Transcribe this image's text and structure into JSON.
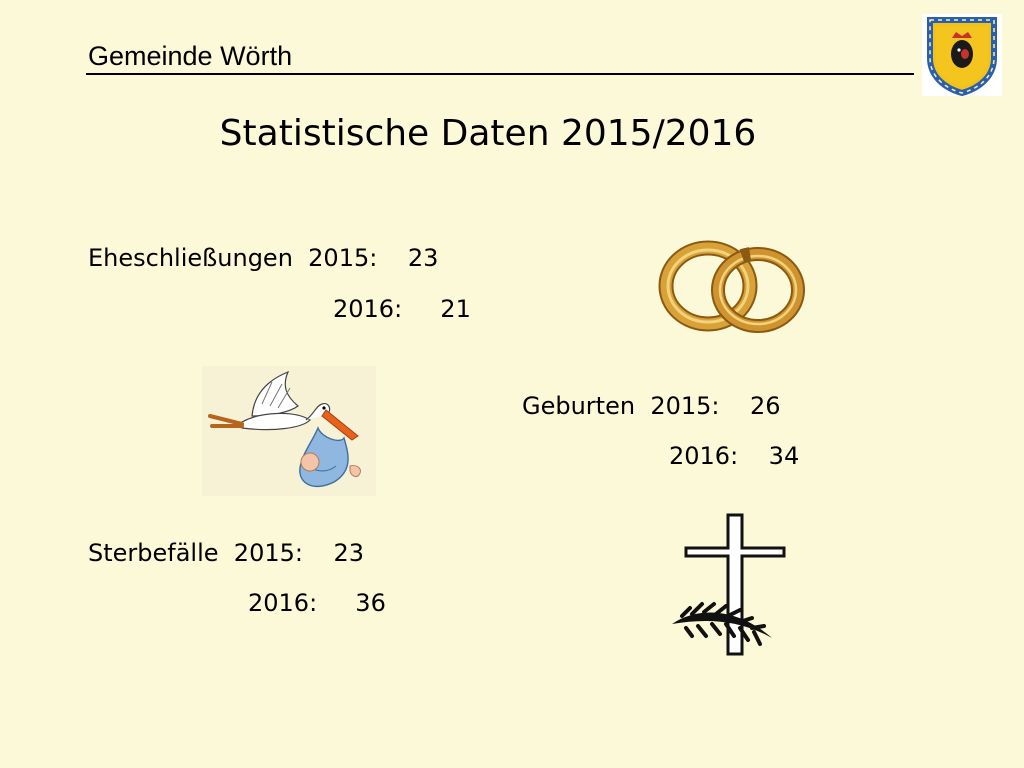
{
  "header": {
    "title": "Gemeinde Wörth",
    "crest_icon": "coat-of-arms"
  },
  "slide": {
    "title": "Statistische Daten 2015/2016"
  },
  "stats": {
    "marriages": {
      "line_2015": "Eheschließungen  2015:    23",
      "line_2016": "2016:     21",
      "icon": "wedding-rings"
    },
    "births": {
      "line_2015": "Geburten  2015:    26",
      "line_2016": "2016:    34",
      "icon": "stork-with-baby"
    },
    "deaths": {
      "line_2015": "Sterbefälle  2015:    23",
      "line_2016": "2016:     36",
      "icon": "cross-with-palm"
    }
  },
  "colors": {
    "background": "#fcf9d8",
    "crest_blue": "#2a5fb0",
    "crest_yellow": "#f2c21b",
    "ring_gold": "#c8922a"
  }
}
